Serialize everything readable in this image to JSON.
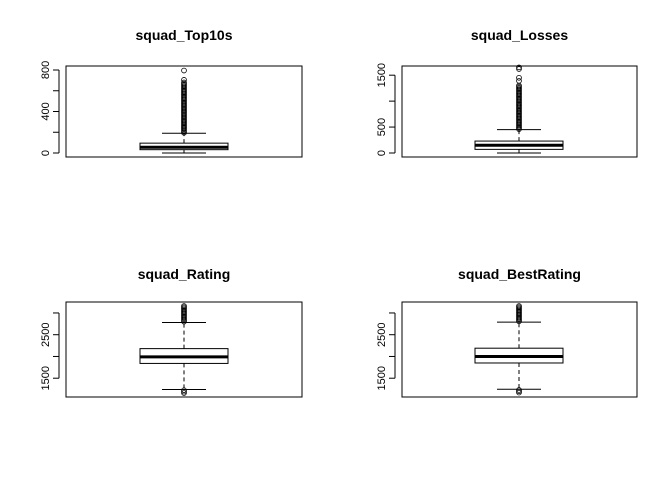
{
  "chart_data": [
    {
      "type": "boxplot",
      "title": "squad_Top10s",
      "ylim": [
        0,
        800
      ],
      "yticks": [
        0,
        200,
        400,
        600,
        800
      ],
      "yticklabels": [
        "0",
        "",
        "400",
        "",
        "800"
      ],
      "stats": {
        "whisker_low": 0,
        "q1": 32,
        "median": 55,
        "q3": 95,
        "whisker_high": 190
      },
      "outliers": {
        "dense_min": 195,
        "dense_max": 680,
        "extra": [
          705,
          795
        ]
      }
    },
    {
      "type": "boxplot",
      "title": "squad_Losses",
      "ylim": [
        0,
        1600
      ],
      "yticks": [
        0,
        500,
        1000,
        1500
      ],
      "yticklabels": [
        "0",
        "500",
        "",
        "1500"
      ],
      "stats": {
        "whisker_low": 0,
        "q1": 70,
        "median": 150,
        "q3": 230,
        "whisker_high": 450
      },
      "outliers": {
        "dense_min": 460,
        "dense_max": 1300,
        "extra": [
          1390,
          1450,
          1620,
          1650
        ]
      }
    },
    {
      "type": "boxplot",
      "title": "squad_Rating",
      "ylim": [
        1160,
        3160
      ],
      "yticks": [
        1500,
        2000,
        2500,
        3000
      ],
      "yticklabels": [
        "1500",
        "",
        "2500",
        ""
      ],
      "stats": {
        "whisker_low": 1240,
        "q1": 1840,
        "median": 1990,
        "q3": 2180,
        "whisker_high": 2780
      },
      "outliers": {
        "dense_min": 2800,
        "dense_max": 3160,
        "low_min": 1160,
        "low_max": 1225,
        "extra": []
      }
    },
    {
      "type": "boxplot",
      "title": "squad_BestRating",
      "ylim": [
        1160,
        3160
      ],
      "yticks": [
        1500,
        2000,
        2500,
        3000
      ],
      "yticklabels": [
        "1500",
        "",
        "2500",
        ""
      ],
      "stats": {
        "whisker_low": 1245,
        "q1": 1850,
        "median": 2000,
        "q3": 2190,
        "whisker_high": 2790
      },
      "outliers": {
        "dense_min": 2810,
        "dense_max": 3160,
        "low_min": 1170,
        "low_max": 1230,
        "extra": []
      }
    }
  ]
}
